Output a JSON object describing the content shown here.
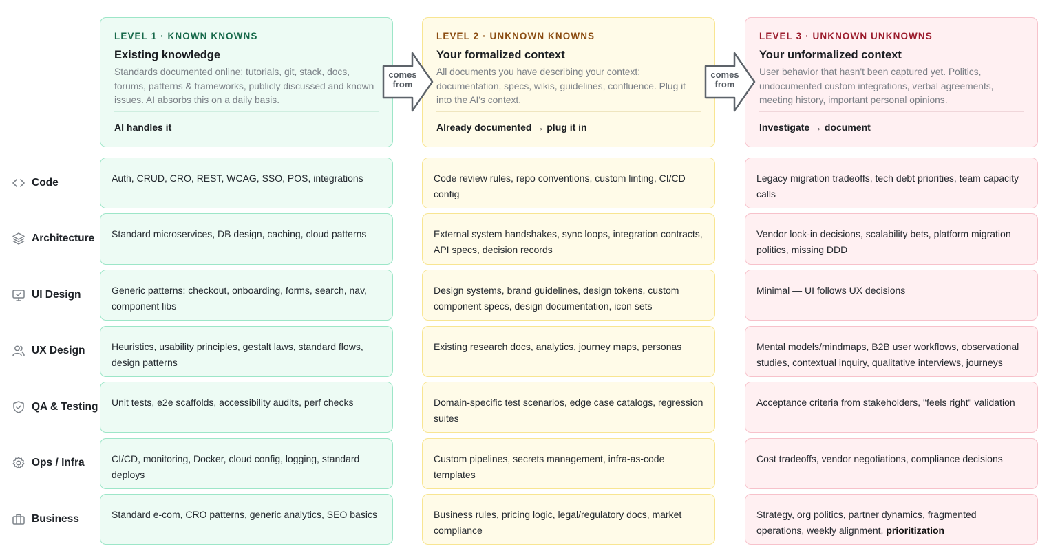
{
  "levels": [
    {
      "eyebrow": "LEVEL 1 · KNOWN KNOWNS",
      "title": "Existing knowledge",
      "description": "Standards documented online: tutorials, git, stack, docs, forums, patterns & frameworks, publicly discussed and known issues. AI absorbs this on a daily basis.",
      "footer": "AI handles it",
      "color": "#17694a"
    },
    {
      "eyebrow": "LEVEL 2 · UNKNOWN KNOWNS",
      "title": "Your formalized context",
      "description": "All documents you have describing your context: documentation, specs, wikis, guidelines, confluence. Plug it into the AI's context.",
      "footer": "Already documented → plug it in",
      "color": "#8a4b10"
    },
    {
      "eyebrow": "LEVEL 3 · UNKNOWN UNKNOWNS",
      "title": "Your unformalized context",
      "description": "User behavior that hasn't been captured yet. Politics, undocumented custom integrations, verbal agreements, meeting history, important personal opinions.",
      "footer": "Investigate → document",
      "color": "#9b1b2c"
    }
  ],
  "connectors": [
    {
      "label_line1": "comes",
      "label_line2": "from"
    },
    {
      "label_line1": "comes",
      "label_line2": "from"
    }
  ],
  "rows": [
    {
      "label": "Code",
      "icon": "code-icon",
      "l1": "Auth, CRUD, CRO, REST, WCAG, SSO, POS, integrations",
      "l2": "Code review rules, repo conventions, custom linting, CI/CD config",
      "l3": "Legacy migration tradeoffs, tech debt priorities, team capacity calls"
    },
    {
      "label": "Architecture",
      "icon": "layers-icon",
      "l1": "Standard microservices, DB design, caching, cloud patterns",
      "l2": "External system handshakes, sync loops, integration contracts, API specs, decision records",
      "l3": "Vendor lock-in decisions, scalability bets, platform migration politics, missing DDD"
    },
    {
      "label": "UI Design",
      "icon": "monitor-icon",
      "l1": "Generic patterns: checkout, onboarding, forms, search, nav, component libs",
      "l2": "Design systems, brand guidelines, design tokens, custom component specs, design documentation, icon sets",
      "l3": "Minimal — UI follows UX decisions"
    },
    {
      "label": "UX Design",
      "icon": "users-icon",
      "l1": "Heuristics, usability principles, gestalt laws, standard flows, design patterns",
      "l2": "Existing research docs, analytics, journey maps, personas",
      "l3": "Mental models/mindmaps, B2B user workflows, observational studies, contextual inquiry, qualitative interviews, journeys"
    },
    {
      "label": "QA & Testing",
      "icon": "shield-check-icon",
      "l1": "Unit tests, e2e scaffolds, accessibility audits, perf checks",
      "l2": "Domain-specific test scenarios, edge case catalogs, regression suites",
      "l3": "Acceptance criteria from stakeholders, \"feels right\" validation"
    },
    {
      "label": "Ops / Infra",
      "icon": "gear-icon",
      "l1": "CI/CD, monitoring, Docker, cloud config, logging, standard deploys",
      "l2": "Custom pipelines, secrets management, infra-as-code templates",
      "l3": "Cost tradeoffs, vendor negotiations, compliance decisions"
    },
    {
      "label": "Business",
      "icon": "briefcase-icon",
      "l1": "Standard e-com, CRO patterns, generic analytics, SEO basics",
      "l2": "Business rules, pricing logic, legal/regulatory docs, market compliance",
      "l3_prefix": "Strategy, org politics, partner dynamics, fragmented operations, weekly alignment, ",
      "l3_bold": "prioritization"
    }
  ]
}
